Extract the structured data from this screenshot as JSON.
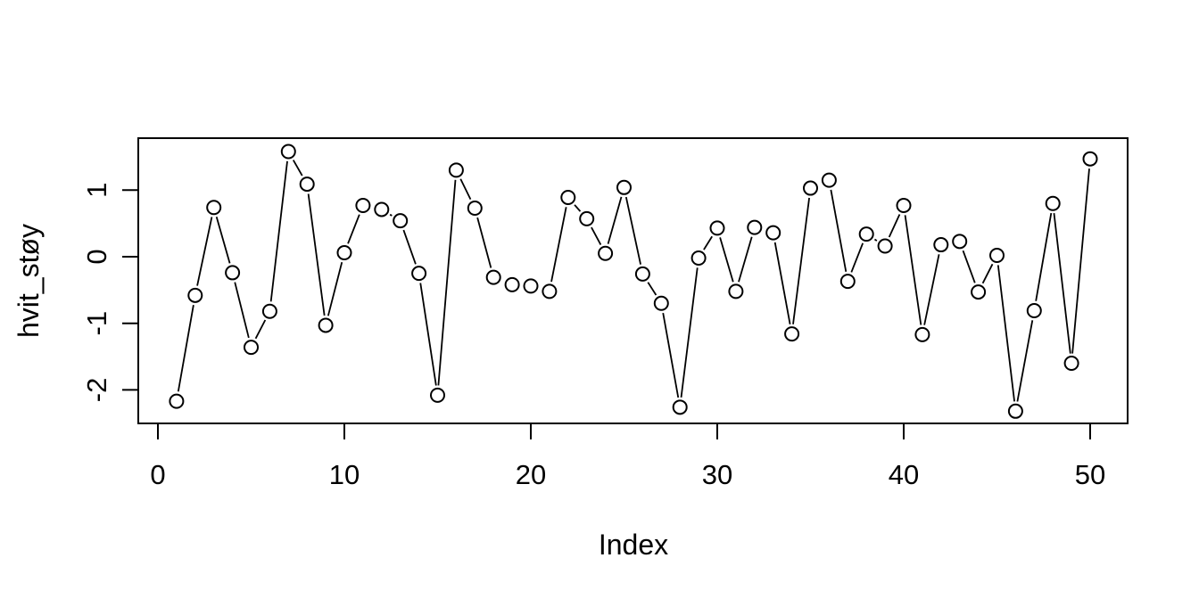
{
  "chart_data": {
    "type": "line",
    "title": "",
    "xlabel": "Index",
    "ylabel": "hvit_støy",
    "x": [
      1,
      2,
      3,
      4,
      5,
      6,
      7,
      8,
      9,
      10,
      11,
      12,
      13,
      14,
      15,
      16,
      17,
      18,
      19,
      20,
      21,
      22,
      23,
      24,
      25,
      26,
      27,
      28,
      29,
      30,
      31,
      32,
      33,
      34,
      35,
      36,
      37,
      38,
      39,
      40,
      41,
      42,
      43,
      44,
      45,
      46,
      47,
      48,
      49,
      50
    ],
    "values": [
      -2.17,
      -0.58,
      0.74,
      -0.24,
      -1.36,
      -0.82,
      1.58,
      1.09,
      -1.03,
      0.06,
      0.77,
      0.71,
      0.54,
      -0.25,
      -2.08,
      1.3,
      0.73,
      -0.31,
      -0.42,
      -0.44,
      -0.52,
      0.89,
      0.57,
      0.05,
      1.04,
      -0.26,
      -0.7,
      -2.26,
      -0.02,
      0.43,
      -0.52,
      0.44,
      0.36,
      -1.16,
      1.03,
      1.15,
      -0.37,
      0.34,
      0.16,
      0.77,
      -1.17,
      0.18,
      0.23,
      -0.53,
      0.02,
      -2.32,
      -0.81,
      0.8,
      -1.6,
      1.47
    ],
    "x_ticks": [
      0,
      10,
      20,
      30,
      40,
      50
    ],
    "y_ticks": [
      1,
      0,
      -1,
      -2
    ],
    "xlim": [
      -1,
      52
    ],
    "ylim": [
      -2.5,
      1.8
    ],
    "marker": "open-circle",
    "line_style": "segments-with-gaps",
    "grid": false,
    "legend": null,
    "colors": {
      "line": "#000000",
      "marker": "#000000",
      "frame": "#000000",
      "text": "#000000",
      "background": "#ffffff"
    }
  }
}
